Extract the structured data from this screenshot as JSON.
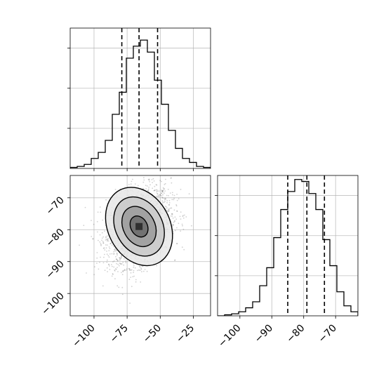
{
  "chart_data": {
    "type": "corner",
    "parameters": [
      {
        "range": [
          -118,
          -12
        ],
        "ticks": [
          -100,
          -75,
          -50,
          -25
        ],
        "tick_labels": [
          "−100",
          "−75",
          "−50",
          "−25"
        ],
        "quantiles": [
          -79,
          -66,
          -52
        ],
        "histogram": {
          "edges_start": -118,
          "bin_width": 5.3,
          "counts": [
            0.005,
            0.01,
            0.02,
            0.05,
            0.08,
            0.14,
            0.27,
            0.38,
            0.55,
            0.61,
            0.64,
            0.58,
            0.44,
            0.32,
            0.19,
            0.1,
            0.05,
            0.03,
            0.01,
            0.005
          ]
        }
      },
      {
        "range": [
          -107,
          -63
        ],
        "ticks": [
          -100,
          -90,
          -80,
          -70
        ],
        "tick_labels": [
          "−100",
          "−90",
          "−80",
          "−70"
        ],
        "quantiles": [
          -85,
          -79,
          -73.5
        ],
        "histogram": {
          "edges_start": -107,
          "bin_width": 2.2,
          "counts": [
            0.0,
            0.005,
            0.01,
            0.02,
            0.04,
            0.07,
            0.15,
            0.24,
            0.39,
            0.53,
            0.62,
            0.68,
            0.67,
            0.61,
            0.53,
            0.38,
            0.25,
            0.12,
            0.05,
            0.02,
            0.0
          ]
        }
      }
    ],
    "scatter": {
      "center": [
        -66,
        -79
      ],
      "sigma": [
        12,
        6
      ],
      "correlation": 0.3,
      "n_points": 2500
    },
    "contours": [
      {
        "level": 0.5,
        "radius": 0.55
      },
      {
        "level": 1.0,
        "radius": 1.05
      },
      {
        "level": 1.5,
        "radius": 1.55
      },
      {
        "level": 2.0,
        "radius": 2.05
      }
    ],
    "density_shades": [
      "#e8e8e8",
      "#c8c8c8",
      "#9a9a9a",
      "#6a6a6a",
      "#303030"
    ],
    "grid": true
  }
}
